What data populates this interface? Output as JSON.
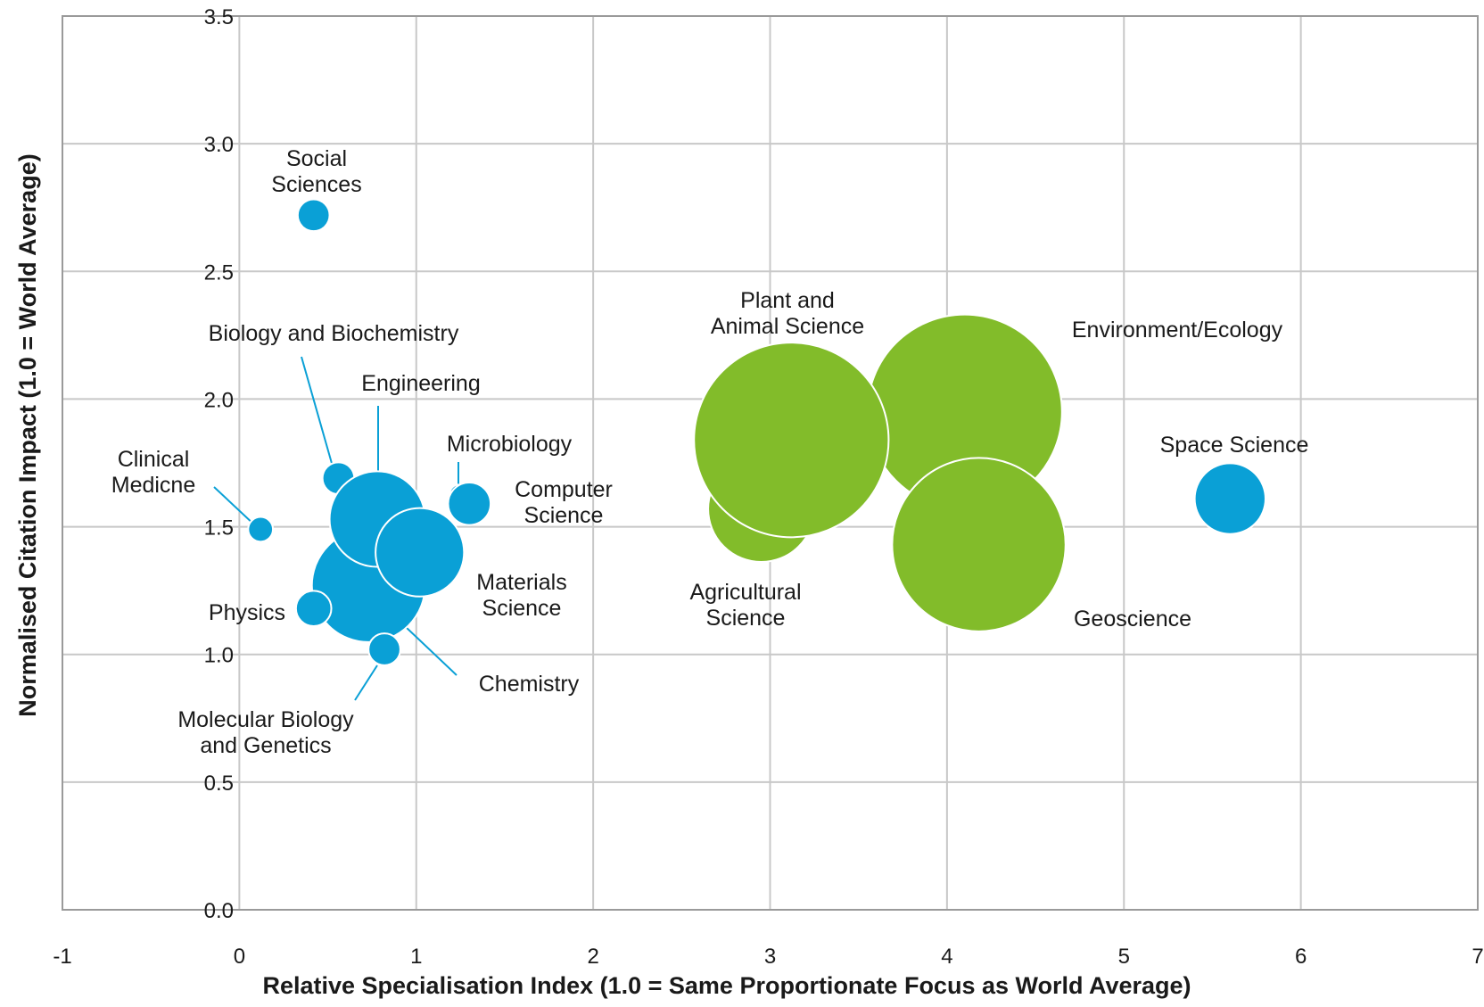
{
  "chart_data": {
    "type": "scatter",
    "subtype": "bubble",
    "xlabel": "Relative Specialisation Index (1.0 = Same Proportionate Focus as World Average)",
    "ylabel": "Normalised Citation Impact (1.0 = World Average)",
    "xlim": [
      -1,
      7
    ],
    "ylim": [
      0,
      3.5
    ],
    "xticks": [
      "-1",
      "0",
      "1",
      "2",
      "3",
      "4",
      "5",
      "6",
      "7"
    ],
    "yticks": [
      "0.0",
      "0.5",
      "1.0",
      "1.5",
      "2.0",
      "2.5",
      "3.0",
      "3.5"
    ],
    "grid": true,
    "colors": {
      "blue": "#0aa0d6",
      "green": "#82bc2a"
    },
    "points": [
      {
        "label": "Social Sciences",
        "x": 0.42,
        "y": 2.72,
        "size": 0.09,
        "color": "blue"
      },
      {
        "label": "Clinical Medicne",
        "x": 0.12,
        "y": 1.49,
        "size": 0.07,
        "color": "blue"
      },
      {
        "label": "Biology and Biochemistry",
        "x": 0.56,
        "y": 1.69,
        "size": 0.09,
        "color": "blue"
      },
      {
        "label": "Chemistry",
        "x": 0.73,
        "y": 1.27,
        "size": 0.32,
        "color": "blue"
      },
      {
        "label": "Engineering",
        "x": 0.78,
        "y": 1.53,
        "size": 0.27,
        "color": "blue"
      },
      {
        "label": "Materials Science",
        "x": 1.02,
        "y": 1.4,
        "size": 0.25,
        "color": "blue"
      },
      {
        "label": "Physics",
        "x": 0.42,
        "y": 1.18,
        "size": 0.1,
        "color": "blue"
      },
      {
        "label": "Molecular Biology and Genetics",
        "x": 0.82,
        "y": 1.02,
        "size": 0.09,
        "color": "blue"
      },
      {
        "label": "Microbiology",
        "x": 1.24,
        "y": 1.63,
        "size": 0.05,
        "color": "blue"
      },
      {
        "label": "Computer Science",
        "x": 1.3,
        "y": 1.59,
        "size": 0.12,
        "color": "blue"
      },
      {
        "label": "Space Science",
        "x": 5.6,
        "y": 1.61,
        "size": 0.2,
        "color": "blue"
      },
      {
        "label": "Agricultural Science",
        "x": 2.95,
        "y": 1.57,
        "size": 0.3,
        "color": "green"
      },
      {
        "label": "Environment/Ecology",
        "x": 4.1,
        "y": 1.95,
        "size": 0.55,
        "color": "green"
      },
      {
        "label": "Geoscience",
        "x": 4.18,
        "y": 1.43,
        "size": 0.49,
        "color": "green"
      },
      {
        "label": "Plant and Animal Science",
        "x": 3.12,
        "y": 1.84,
        "size": 0.55,
        "color": "green"
      }
    ]
  }
}
